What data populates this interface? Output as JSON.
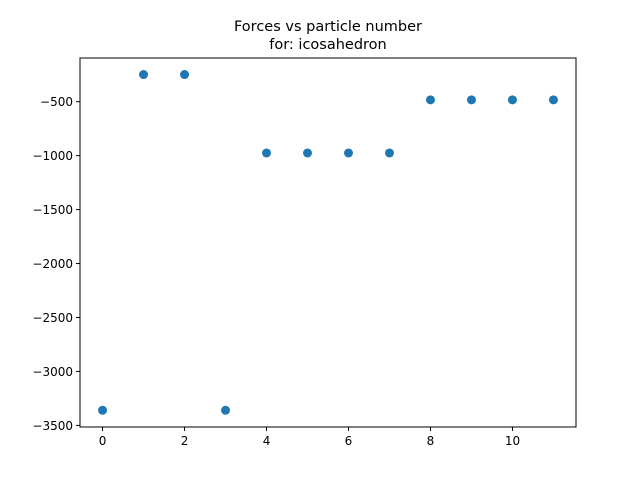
{
  "chart_data": {
    "type": "scatter",
    "title": "Forces vs particle number",
    "subtitle": "for: icosahedron",
    "xlabel": "",
    "ylabel": "",
    "x": [
      0,
      1,
      2,
      3,
      4,
      5,
      6,
      7,
      8,
      9,
      10,
      11
    ],
    "y": [
      -3360,
      -248,
      -248,
      -3360,
      -975,
      -975,
      -975,
      -975,
      -483,
      -483,
      -483,
      -483
    ],
    "xlim": [
      -0.55,
      11.55
    ],
    "ylim": [
      -3515,
      -95
    ],
    "x_ticks": [
      "0",
      "2",
      "4",
      "6",
      "8",
      "10"
    ],
    "y_ticks": [
      "−3500",
      "−3000",
      "−2500",
      "−2000",
      "−1500",
      "−1000",
      "−500"
    ],
    "grid": false,
    "marker_color": "#1f77b4"
  }
}
